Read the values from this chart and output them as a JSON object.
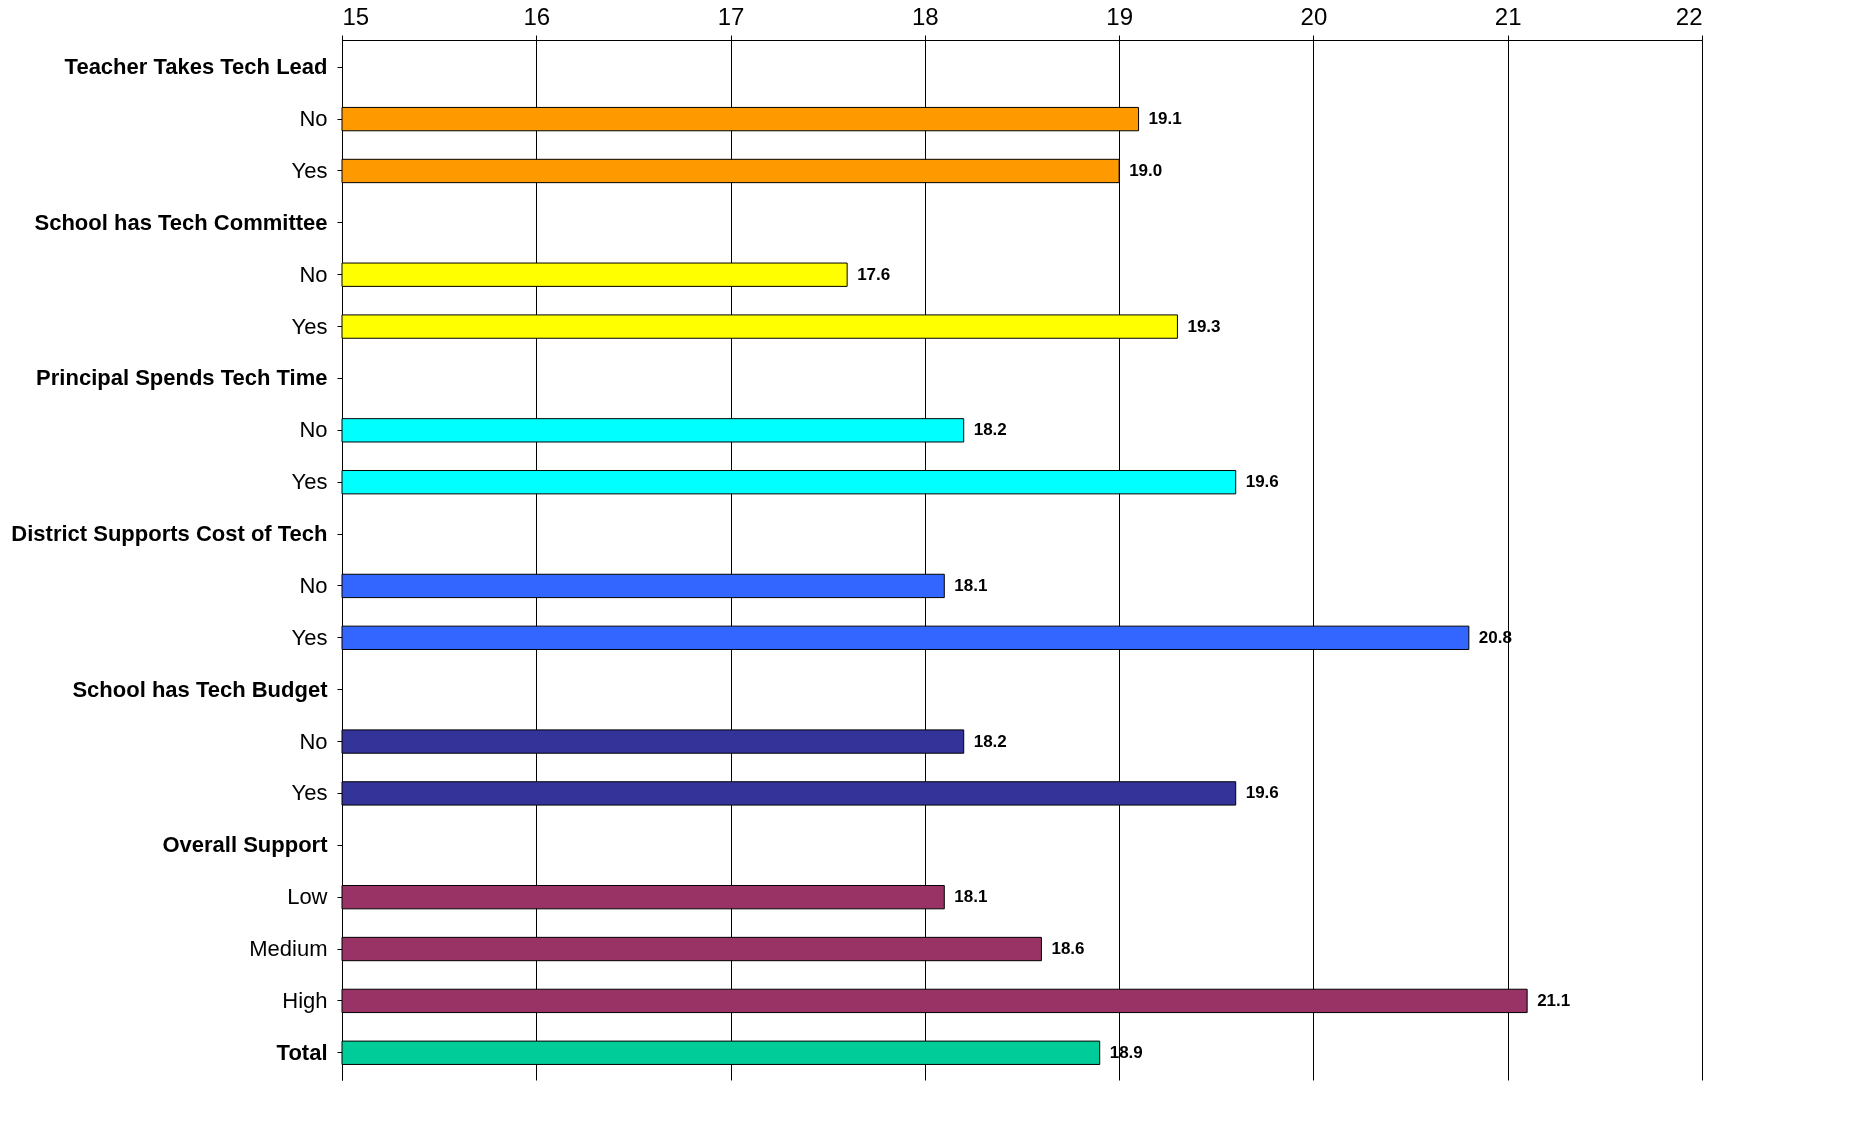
{
  "chart_data": {
    "type": "bar",
    "orientation": "horizontal",
    "categories": [
      "Teacher Takes Tech Lead",
      "No",
      "Yes",
      "School has Tech Committee",
      "No",
      "Yes",
      "Principal Spends Tech Time",
      "No",
      "Yes",
      "District Supports Cost of Tech",
      "No",
      "Yes",
      "School has Tech Budget",
      "No",
      "Yes",
      "Overall Support",
      "Low",
      "Medium",
      "High",
      "Total"
    ],
    "values": [
      null,
      19.1,
      19.0,
      null,
      17.6,
      19.3,
      null,
      18.2,
      19.6,
      null,
      18.1,
      20.8,
      null,
      18.2,
      19.6,
      null,
      18.1,
      18.6,
      21.1,
      18.9
    ],
    "value_labels": [
      null,
      "19.1",
      "19.0",
      null,
      "17.6",
      "19.3",
      null,
      "18.2",
      "19.6",
      null,
      "18.1",
      "20.8",
      null,
      "18.2",
      "19.6",
      null,
      "18.1",
      "18.6",
      "21.1",
      "18.9"
    ],
    "colors": [
      null,
      "#ff9900",
      "#ff9900",
      null,
      "#ffff00",
      "#ffff00",
      null,
      "#00ffff",
      "#00ffff",
      null,
      "#3366ff",
      "#3366ff",
      null,
      "#333399",
      "#333399",
      null,
      "#993366",
      "#993366",
      "#993366",
      "#00cc99"
    ],
    "xlim": [
      15,
      22
    ],
    "xticks": [
      15,
      16,
      17,
      18,
      19,
      20,
      21,
      22
    ],
    "grid": "x"
  }
}
